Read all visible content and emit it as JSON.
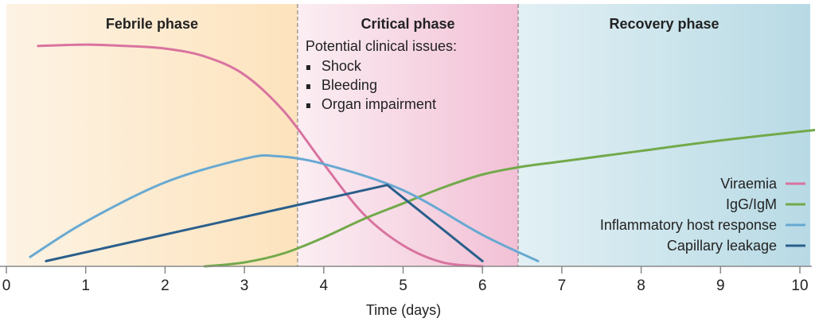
{
  "chart_data": {
    "type": "line",
    "xlabel": "Time (days)",
    "ylabel": "",
    "xlim": [
      0,
      10.2
    ],
    "ylim": [
      0,
      1
    ],
    "x_ticks": [
      "0",
      "1",
      "2",
      "3",
      "4",
      "5",
      "6",
      "7",
      "8",
      "9",
      "10"
    ],
    "grid": false,
    "legend_placement": "bottom-right",
    "phases": [
      {
        "name": "Febrile phase",
        "start": 0,
        "end": 3.67,
        "colors": [
          "#fdf3e4",
          "#fde3bd"
        ]
      },
      {
        "name": "Critical phase",
        "start": 3.67,
        "end": 6.45,
        "colors": [
          "#fbeef3",
          "#f2c0d5"
        ],
        "note_title": "Potential clinical issues:",
        "notes": [
          "Shock",
          "Bleeding",
          "Organ impairment"
        ]
      },
      {
        "name": "Recovery phase",
        "start": 6.45,
        "end": 10.2,
        "colors": [
          "#e2f0f4",
          "#b8dae5"
        ]
      }
    ],
    "series": [
      {
        "name": "Viraemia",
        "color": "#d9739f",
        "x": [
          0.4,
          1.0,
          1.5,
          2.0,
          2.5,
          3.0,
          3.5,
          4.0,
          4.5,
          5.0,
          5.5,
          6.0
        ],
        "y": [
          0.84,
          0.845,
          0.84,
          0.83,
          0.8,
          0.73,
          0.59,
          0.39,
          0.2,
          0.08,
          0.015,
          0.0
        ]
      },
      {
        "name": "IgG/IgM",
        "color": "#72a94a",
        "x": [
          2.5,
          3.0,
          3.5,
          4.0,
          4.5,
          5.0,
          5.5,
          6.0,
          6.5,
          7.0,
          8.0,
          9.0,
          10.2
        ],
        "y": [
          0.0,
          0.015,
          0.05,
          0.11,
          0.18,
          0.24,
          0.3,
          0.35,
          0.38,
          0.4,
          0.44,
          0.48,
          0.52
        ]
      },
      {
        "name": "Inflammatory host response",
        "color": "#68a9d2",
        "x": [
          0.3,
          1.0,
          2.0,
          3.0,
          3.4,
          4.0,
          5.0,
          6.0,
          6.7
        ],
        "y": [
          0.036,
          0.17,
          0.32,
          0.41,
          0.42,
          0.39,
          0.29,
          0.12,
          0.02
        ]
      },
      {
        "name": "Capillary leakage",
        "color": "#2a5f8c",
        "x": [
          0.5,
          4.8,
          6.0
        ],
        "y": [
          0.02,
          0.31,
          0.02
        ],
        "straight": true
      }
    ]
  }
}
